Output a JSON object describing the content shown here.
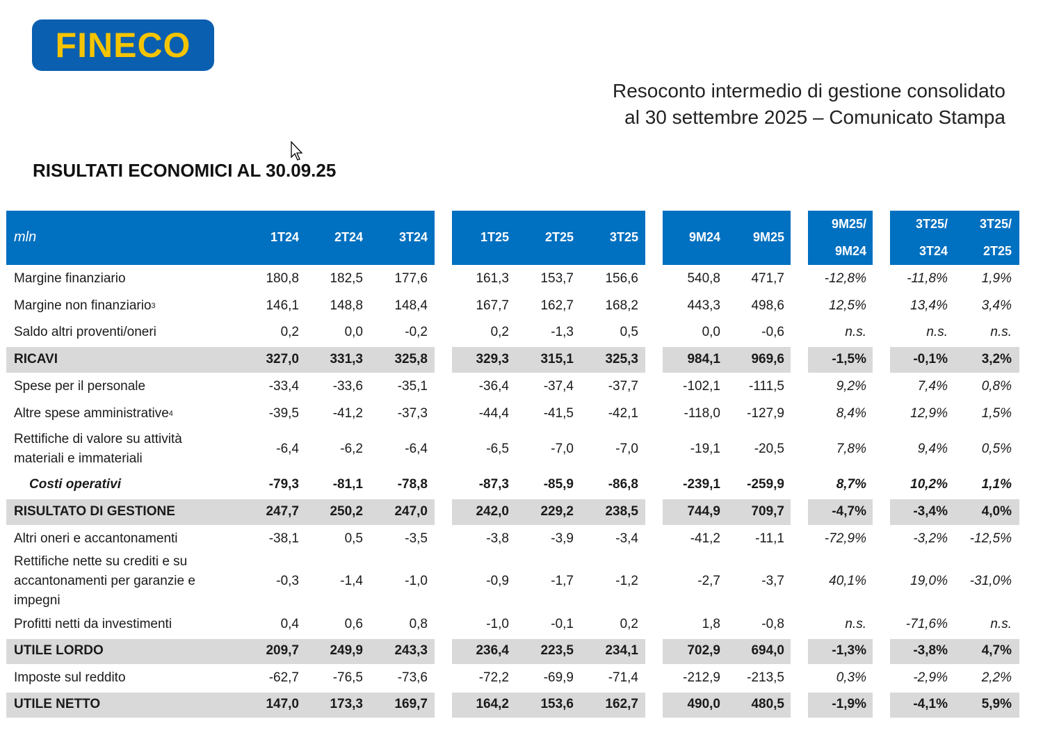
{
  "logo": {
    "text": "FINECO",
    "color": "#0b5fb0",
    "text_color": "#f5c400"
  },
  "document_title": {
    "line1": "Resoconto intermedio di gestione consolidato",
    "line2": "al 30 settembre 2025 – Comunicato Stampa"
  },
  "section_title": "RISULTATI ECONOMICI AL 30.09.25",
  "table": {
    "unit_label": "mln",
    "columns": [
      {
        "line1": "1T24",
        "line2": ""
      },
      {
        "line1": "2T24",
        "line2": ""
      },
      {
        "line1": "3T24",
        "line2": ""
      },
      {
        "line1": "1T25",
        "line2": ""
      },
      {
        "line1": "2T25",
        "line2": ""
      },
      {
        "line1": "3T25",
        "line2": ""
      },
      {
        "line1": "9M24",
        "line2": ""
      },
      {
        "line1": "9M25",
        "line2": ""
      },
      {
        "line1": "9M25/",
        "line2": "9M24"
      },
      {
        "line1": "3T25/",
        "line2": "3T24"
      },
      {
        "line1": "3T25/",
        "line2": "2T25"
      }
    ],
    "header_color": "#0070c0",
    "shade_color": "#d9d9d9",
    "rows": [
      {
        "label": "Margine finanziario",
        "sup": "",
        "type": "normal",
        "values": [
          "180,8",
          "182,5",
          "177,6",
          "161,3",
          "153,7",
          "156,6",
          "540,8",
          "471,7",
          "-12,8%",
          "-11,8%",
          "1,9%"
        ]
      },
      {
        "label": "Margine non finanziario",
        "sup": "3",
        "type": "normal",
        "values": [
          "146,1",
          "148,8",
          "148,4",
          "167,7",
          "162,7",
          "168,2",
          "443,3",
          "498,6",
          "12,5%",
          "13,4%",
          "3,4%"
        ]
      },
      {
        "label": "Saldo altri proventi/oneri",
        "sup": "",
        "type": "normal",
        "values": [
          "0,2",
          "0,0",
          "-0,2",
          "0,2",
          "-1,3",
          "0,5",
          "0,0",
          "-0,6",
          "n.s.",
          "n.s.",
          "n.s."
        ]
      },
      {
        "label": "RICAVI",
        "sup": "",
        "type": "total",
        "values": [
          "327,0",
          "331,3",
          "325,8",
          "329,3",
          "315,1",
          "325,3",
          "984,1",
          "969,6",
          "-1,5%",
          "-0,1%",
          "3,2%"
        ]
      },
      {
        "label": "Spese per il personale",
        "sup": "",
        "type": "normal",
        "values": [
          "-33,4",
          "-33,6",
          "-35,1",
          "-36,4",
          "-37,4",
          "-37,7",
          "-102,1",
          "-111,5",
          "9,2%",
          "7,4%",
          "0,8%"
        ]
      },
      {
        "label": "Altre spese amministrative",
        "sup": "4",
        "type": "normal",
        "values": [
          "-39,5",
          "-41,2",
          "-37,3",
          "-44,4",
          "-41,5",
          "-42,1",
          "-118,0",
          "-127,9",
          "8,4%",
          "12,9%",
          "1,5%"
        ]
      },
      {
        "label": "Rettifiche di valore su attività materiali e immateriali",
        "sup": "",
        "type": "normal",
        "values": [
          "-6,4",
          "-6,2",
          "-6,4",
          "-6,5",
          "-7,0",
          "-7,0",
          "-19,1",
          "-20,5",
          "7,8%",
          "9,4%",
          "0,5%"
        ]
      },
      {
        "label": "Costi operativi",
        "sup": "",
        "type": "subtotal",
        "values": [
          "-79,3",
          "-81,1",
          "-78,8",
          "-87,3",
          "-85,9",
          "-86,8",
          "-239,1",
          "-259,9",
          "8,7%",
          "10,2%",
          "1,1%"
        ]
      },
      {
        "label": "RISULTATO DI GESTIONE",
        "sup": "",
        "type": "total",
        "values": [
          "247,7",
          "250,2",
          "247,0",
          "242,0",
          "229,2",
          "238,5",
          "744,9",
          "709,7",
          "-4,7%",
          "-3,4%",
          "4,0%"
        ]
      },
      {
        "label": "Altri oneri e accantonamenti",
        "sup": "",
        "type": "normal",
        "values": [
          "-38,1",
          "0,5",
          "-3,5",
          "-3,8",
          "-3,9",
          "-3,4",
          "-41,2",
          "-11,1",
          "-72,9%",
          "-3,2%",
          "-12,5%"
        ]
      },
      {
        "label": "Rettifiche nette su crediti e su accantonamenti per garanzie e impegni",
        "sup": "",
        "type": "normal",
        "values": [
          "-0,3",
          "-1,4",
          "-1,0",
          "-0,9",
          "-1,7",
          "-1,2",
          "-2,7",
          "-3,7",
          "40,1%",
          "19,0%",
          "-31,0%"
        ]
      },
      {
        "label": "Profitti netti da investimenti",
        "sup": "",
        "type": "normal",
        "values": [
          "0,4",
          "0,6",
          "0,8",
          "-1,0",
          "-0,1",
          "0,2",
          "1,8",
          "-0,8",
          "n.s.",
          "-71,6%",
          "n.s."
        ]
      },
      {
        "label": "UTILE LORDO",
        "sup": "",
        "type": "total",
        "values": [
          "209,7",
          "249,9",
          "243,3",
          "236,4",
          "223,5",
          "234,1",
          "702,9",
          "694,0",
          "-1,3%",
          "-3,8%",
          "4,7%"
        ]
      },
      {
        "label": "Imposte sul reddito",
        "sup": "",
        "type": "normal",
        "values": [
          "-62,7",
          "-76,5",
          "-73,6",
          "-72,2",
          "-69,9",
          "-71,4",
          "-212,9",
          "-213,5",
          "0,3%",
          "-2,9%",
          "2,2%"
        ]
      },
      {
        "label": "UTILE NETTO",
        "sup": "",
        "type": "total",
        "values": [
          "147,0",
          "173,3",
          "169,7",
          "164,2",
          "153,6",
          "162,7",
          "490,0",
          "480,5",
          "-1,9%",
          "-4,1%",
          "5,9%"
        ]
      }
    ]
  }
}
